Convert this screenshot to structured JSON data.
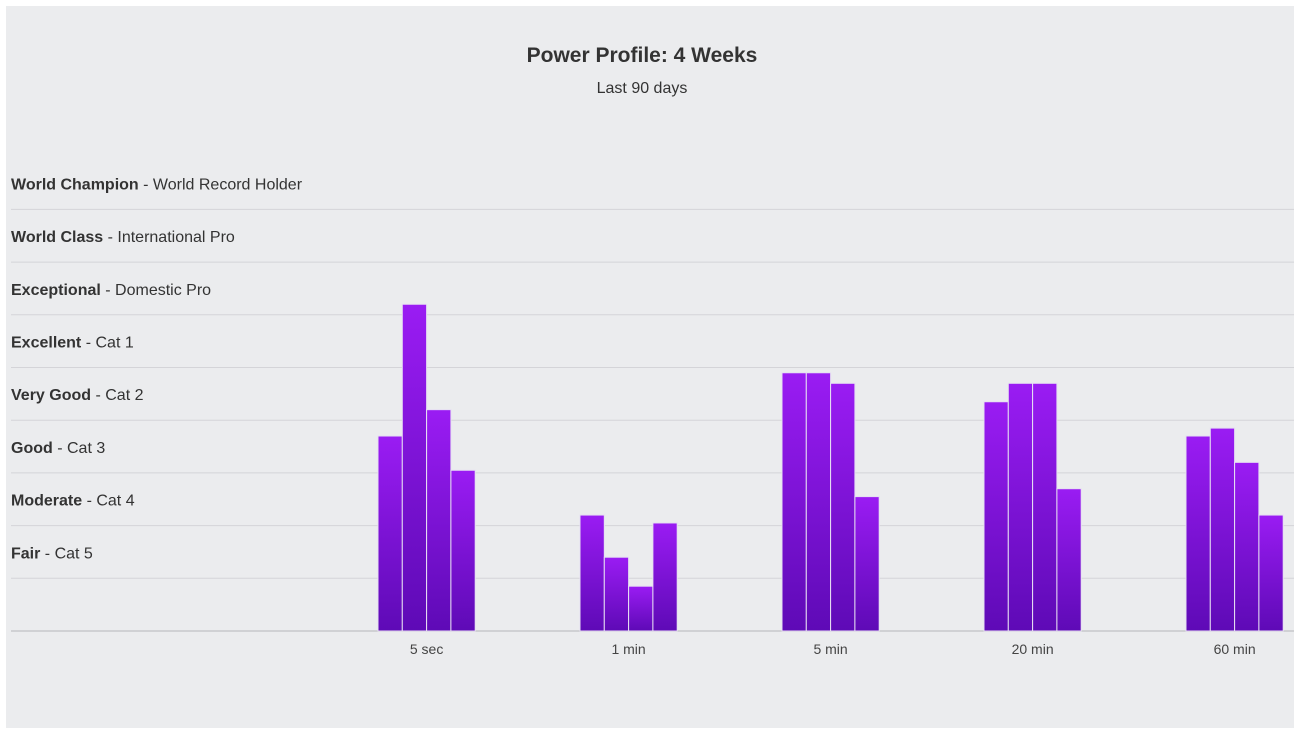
{
  "chart_data": {
    "type": "bar",
    "title": "Power Profile: 4 Weeks",
    "subtitle": "Last 90 days",
    "categories": [
      "5 sec",
      "1 min",
      "5 min",
      "20 min",
      "60 min"
    ],
    "levels": [
      {
        "name": "World Champion",
        "desc": "World Record Holder"
      },
      {
        "name": "World Class",
        "desc": "International Pro"
      },
      {
        "name": "Exceptional",
        "desc": "Domestic Pro"
      },
      {
        "name": "Excellent",
        "desc": "Cat 1"
      },
      {
        "name": "Very Good",
        "desc": "Cat 2"
      },
      {
        "name": "Good",
        "desc": "Cat 3"
      },
      {
        "name": "Moderate",
        "desc": "Cat 4"
      },
      {
        "name": "Fair",
        "desc": "Cat 5"
      }
    ],
    "ylim": [
      0,
      10
    ],
    "grid": true,
    "series_values": [
      [
        3.7,
        6.2,
        4.2,
        3.05
      ],
      [
        2.2,
        1.4,
        0.85,
        2.05
      ],
      [
        4.9,
        4.9,
        4.7,
        2.55
      ],
      [
        4.35,
        4.7,
        4.7,
        2.7
      ],
      [
        3.7,
        3.85,
        3.2,
        2.2
      ]
    ],
    "colors": {
      "bar_top": "#9a1cf3",
      "bar_bottom": "#5e0ab6",
      "grid": "#d4d4d8",
      "axis": "#c8c8cc"
    }
  }
}
